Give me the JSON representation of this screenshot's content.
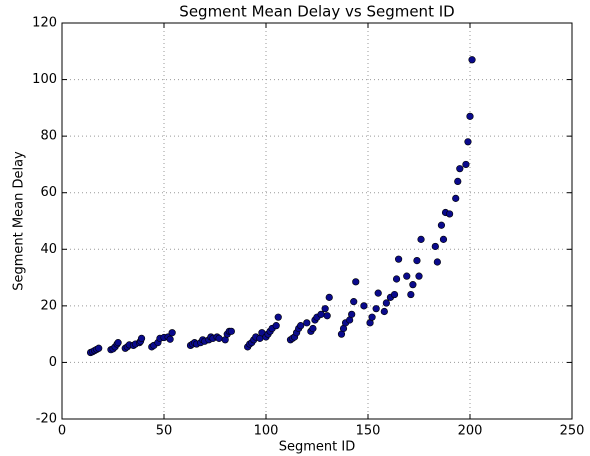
{
  "chart_data": {
    "type": "scatter",
    "title": "Segment Mean Delay vs Segment ID",
    "x_label": "Segment ID",
    "y_label": "Segment Mean Delay",
    "x": [
      14,
      15,
      16,
      17,
      18,
      24,
      25,
      26,
      27,
      27.5,
      31,
      32,
      33,
      35,
      36,
      38,
      38.5,
      39,
      44,
      45,
      47,
      48,
      50,
      52,
      53,
      54,
      63,
      64,
      65,
      66,
      68,
      69,
      70,
      72,
      73,
      74,
      76,
      77,
      80,
      81,
      82,
      83,
      91,
      92,
      93,
      94,
      95,
      97,
      98,
      100,
      101,
      102,
      103,
      105,
      106,
      112,
      113,
      114,
      115,
      116,
      117,
      120,
      122,
      123,
      124,
      125,
      127,
      129,
      130,
      131,
      137,
      138,
      139,
      141,
      142,
      143,
      144,
      148,
      151,
      152,
      154,
      155,
      158,
      159,
      161,
      163,
      164,
      165,
      169,
      171,
      172,
      174,
      175,
      176,
      183,
      184,
      186,
      187,
      188,
      190,
      193,
      194,
      195,
      198,
      199,
      200,
      201
    ],
    "values": [
      3.5,
      3.8,
      4.2,
      4.6,
      5,
      4.5,
      4.8,
      5.5,
      6.5,
      7,
      5,
      5.5,
      6.2,
      6,
      6.5,
      7,
      7.5,
      8.5,
      5.5,
      6,
      7,
      8.5,
      8.8,
      9,
      8.2,
      10.5,
      6,
      6.5,
      7,
      6.5,
      7,
      8,
      7.5,
      8,
      9,
      8.5,
      9,
      8.5,
      8,
      10,
      11,
      11,
      5.5,
      6.5,
      7,
      8,
      9,
      8.5,
      10.5,
      9,
      10,
      11,
      12,
      13,
      16,
      8,
      8.5,
      9,
      10.5,
      12,
      13,
      14,
      11,
      12,
      15,
      16,
      17,
      19,
      16.5,
      23,
      10,
      12,
      14,
      15,
      17,
      21.5,
      28.5,
      20,
      14,
      16,
      19,
      24.5,
      18,
      21,
      23,
      24,
      29.5,
      36.5,
      30.5,
      24,
      27.5,
      36,
      30.5,
      43.5,
      41,
      35.5,
      48.5,
      43.5,
      53,
      52.5,
      58,
      64,
      68.5,
      70,
      78,
      87,
      107
    ],
    "color": "#0a0a8c",
    "xlim": [
      0,
      250
    ],
    "xticks": [
      0,
      50,
      100,
      150,
      200,
      250
    ],
    "ylim": [
      -20,
      120
    ],
    "yticks": [
      -20,
      0,
      20,
      40,
      60,
      80,
      100,
      120
    ],
    "grid": true
  }
}
